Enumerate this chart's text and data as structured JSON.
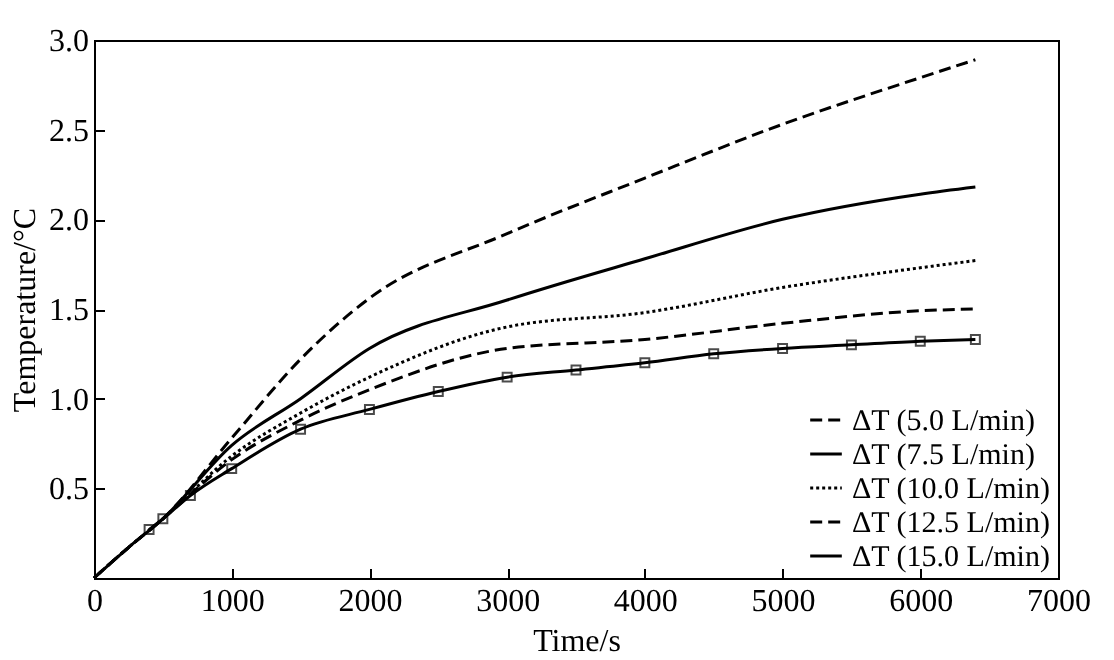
{
  "chart_data": {
    "type": "line",
    "xlabel": "Time/s",
    "ylabel": "Temperature/°C",
    "xlim": [
      0,
      7000
    ],
    "xticks": [
      0,
      1000,
      2000,
      3000,
      4000,
      5000,
      6000,
      7000
    ],
    "ylim": [
      0,
      3.0
    ],
    "yticks": [
      0.5,
      {
        "value": 1,
        "label": "1.0"
      },
      1.5,
      {
        "value": 2,
        "label": "2.0"
      },
      2.5,
      {
        "value": 3,
        "label": "3.0"
      }
    ],
    "grid": false,
    "legend": "bottom right",
    "x": [
      0,
      250,
      500,
      1000,
      1500,
      2000,
      3000,
      4000,
      5000,
      6000,
      6400
    ],
    "series": [
      {
        "name": "ΔT (5.0 L/min)",
        "color": "#000000",
        "line_style": "dashed",
        "values": [
          0,
          0.17,
          0.33,
          0.78,
          1.22,
          1.56,
          1.92,
          2.23,
          2.53,
          2.79,
          2.89
        ]
      },
      {
        "name": "ΔT (7.5 L/min)",
        "color": "#000000",
        "line_style": "solid",
        "values": [
          0,
          0.17,
          0.33,
          0.74,
          1.0,
          1.28,
          1.55,
          1.78,
          2.0,
          2.14,
          2.18
        ]
      },
      {
        "name": "ΔT (10.0 L/min)",
        "color": "#000000",
        "line_style": "dotted",
        "values": [
          0,
          0.17,
          0.33,
          0.68,
          0.92,
          1.12,
          1.4,
          1.48,
          1.62,
          1.73,
          1.77
        ]
      },
      {
        "name": "ΔT (12.5 L/min)",
        "color": "#000000",
        "line_style": "dashed",
        "values": [
          0,
          0.17,
          0.33,
          0.66,
          0.88,
          1.05,
          1.28,
          1.33,
          1.42,
          1.49,
          1.5
        ]
      },
      {
        "name": "ΔT (15.0 L/min)",
        "color": "#000000",
        "line_style": "solid",
        "marker": "square",
        "x": [
          400,
          500,
          700,
          1000,
          1500,
          2000,
          2500,
          3000,
          3500,
          4000,
          4500,
          5000,
          5500,
          6000,
          6400
        ],
        "values": [
          0.27,
          0.33,
          0.46,
          0.61,
          0.83,
          0.94,
          1.04,
          1.12,
          1.16,
          1.2,
          1.25,
          1.28,
          1.3,
          1.32,
          1.33
        ]
      }
    ]
  }
}
